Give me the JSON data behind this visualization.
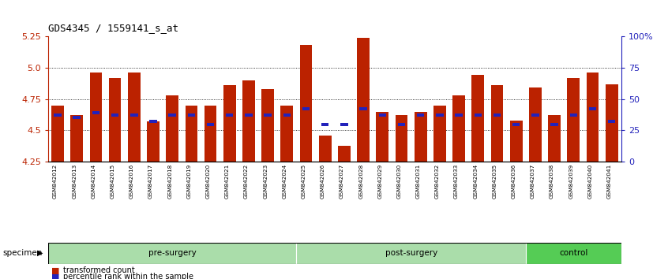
{
  "title": "GDS4345 / 1559141_s_at",
  "samples": [
    "GSM842012",
    "GSM842013",
    "GSM842014",
    "GSM842015",
    "GSM842016",
    "GSM842017",
    "GSM842018",
    "GSM842019",
    "GSM842020",
    "GSM842021",
    "GSM842022",
    "GSM842023",
    "GSM842024",
    "GSM842025",
    "GSM842026",
    "GSM842027",
    "GSM842028",
    "GSM842029",
    "GSM842030",
    "GSM842031",
    "GSM842032",
    "GSM842033",
    "GSM842034",
    "GSM842035",
    "GSM842036",
    "GSM842037",
    "GSM842038",
    "GSM842039",
    "GSM842040",
    "GSM842041"
  ],
  "red_values": [
    4.7,
    4.62,
    4.96,
    4.92,
    4.96,
    4.57,
    4.78,
    4.7,
    4.7,
    4.86,
    4.9,
    4.83,
    4.7,
    5.18,
    4.46,
    4.38,
    5.24,
    4.65,
    4.62,
    4.65,
    4.7,
    4.78,
    4.94,
    4.86,
    4.58,
    4.84,
    4.62,
    4.92,
    4.96,
    4.87
  ],
  "blue_values": [
    4.625,
    4.605,
    4.64,
    4.625,
    4.625,
    4.57,
    4.625,
    4.625,
    4.55,
    4.625,
    4.625,
    4.625,
    4.625,
    4.67,
    4.55,
    4.55,
    4.67,
    4.625,
    4.55,
    4.625,
    4.625,
    4.625,
    4.625,
    4.625,
    4.55,
    4.625,
    4.55,
    4.625,
    4.67,
    4.57
  ],
  "group_labels": [
    "pre-surgery",
    "post-surgery",
    "control"
  ],
  "group_starts": [
    0,
    13,
    25
  ],
  "group_ends": [
    13,
    25,
    30
  ],
  "group_colors": [
    "#aaddaa",
    "#aaddaa",
    "#55cc55"
  ],
  "ymin": 4.25,
  "ymax": 5.25,
  "yticks": [
    4.25,
    4.5,
    4.75,
    5.0,
    5.25
  ],
  "right_yticks": [
    0,
    25,
    50,
    75,
    100
  ],
  "bar_color": "#BB2200",
  "blue_color": "#2222BB",
  "bg_color": "#FFFFFF",
  "legend_red": "transformed count",
  "legend_blue": "percentile rank within the sample"
}
